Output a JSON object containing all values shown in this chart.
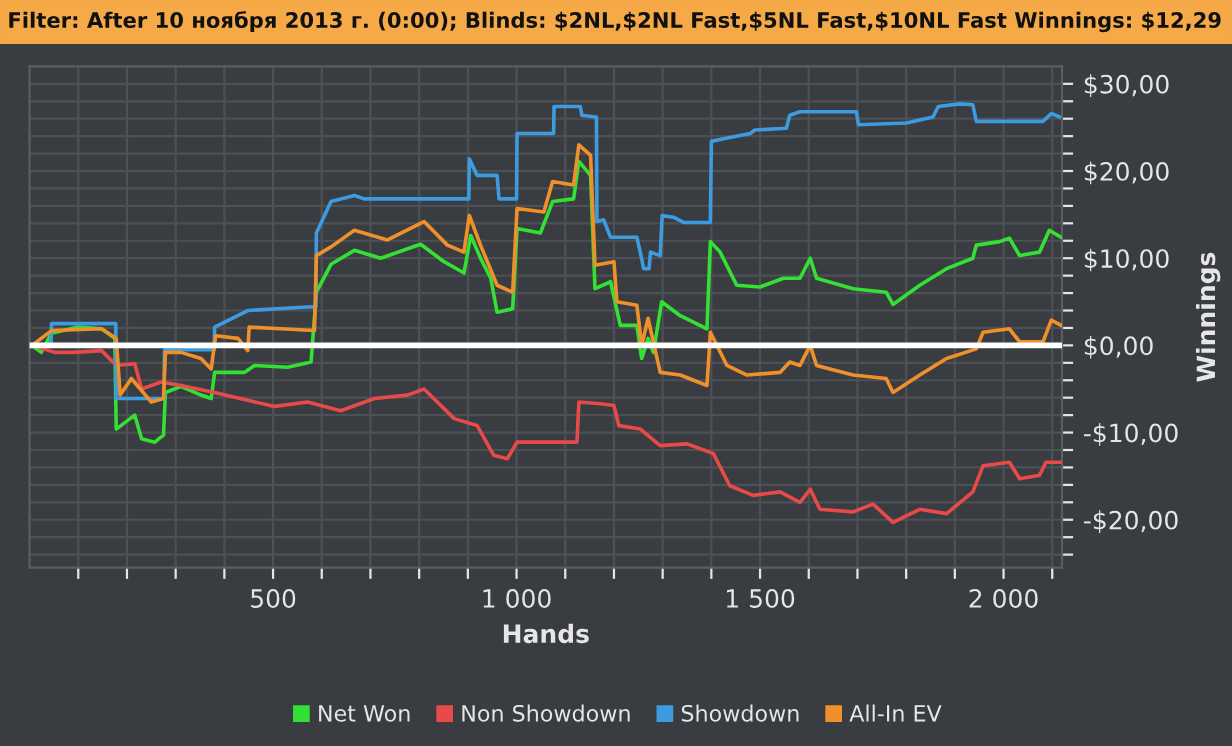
{
  "chart_data": {
    "type": "line",
    "title": "Filter: After 10 ноября 2013 г. (0:00); Blinds: $2NL,$2NL Fast,$5NL Fast,$10NL Fast Winnings: $12,29",
    "xlabel": "Hands",
    "ylabel": "Winnings",
    "xlim": [
      0,
      2120
    ],
    "ylim": [
      -25.5,
      32
    ],
    "xticks": [
      {
        "value": 100,
        "label": null
      },
      {
        "value": 200,
        "label": null
      },
      {
        "value": 300,
        "label": null
      },
      {
        "value": 400,
        "label": null
      },
      {
        "value": 500,
        "label": "500"
      },
      {
        "value": 600,
        "label": null
      },
      {
        "value": 700,
        "label": null
      },
      {
        "value": 800,
        "label": null
      },
      {
        "value": 900,
        "label": null
      },
      {
        "value": 1000,
        "label": "1 000"
      },
      {
        "value": 1100,
        "label": null
      },
      {
        "value": 1200,
        "label": null
      },
      {
        "value": 1300,
        "label": null
      },
      {
        "value": 1400,
        "label": null
      },
      {
        "value": 1500,
        "label": "1 500"
      },
      {
        "value": 1600,
        "label": null
      },
      {
        "value": 1700,
        "label": null
      },
      {
        "value": 1800,
        "label": null
      },
      {
        "value": 1900,
        "label": null
      },
      {
        "value": 2000,
        "label": "2 000"
      },
      {
        "value": 2100,
        "label": null
      }
    ],
    "yticks": [
      {
        "value": -24,
        "label": null
      },
      {
        "value": -22,
        "label": null
      },
      {
        "value": -20,
        "label": "-$20,00"
      },
      {
        "value": -18,
        "label": null
      },
      {
        "value": -16,
        "label": null
      },
      {
        "value": -14,
        "label": null
      },
      {
        "value": -12,
        "label": null
      },
      {
        "value": -10,
        "label": "-$10,00"
      },
      {
        "value": -8,
        "label": null
      },
      {
        "value": -6,
        "label": null
      },
      {
        "value": -4,
        "label": null
      },
      {
        "value": -2,
        "label": null
      },
      {
        "value": 0,
        "label": "$0,00"
      },
      {
        "value": 2,
        "label": null
      },
      {
        "value": 4,
        "label": null
      },
      {
        "value": 6,
        "label": null
      },
      {
        "value": 8,
        "label": null
      },
      {
        "value": 10,
        "label": "$10,00"
      },
      {
        "value": 12,
        "label": null
      },
      {
        "value": 14,
        "label": null
      },
      {
        "value": 16,
        "label": null
      },
      {
        "value": 18,
        "label": null
      },
      {
        "value": 20,
        "label": "$20,00"
      },
      {
        "value": 22,
        "label": null
      },
      {
        "value": 24,
        "label": null
      },
      {
        "value": 26,
        "label": null
      },
      {
        "value": 28,
        "label": null
      },
      {
        "value": 30,
        "label": "$30,00"
      }
    ],
    "grid": true,
    "legend": "bottom",
    "marker": "none",
    "line_style": "solid",
    "ref_lines": [
      {
        "axis": "y",
        "value": 0,
        "label": null,
        "color": "#ffffff"
      }
    ],
    "series": [
      {
        "name": "Net Won",
        "color": "#33e033",
        "x": [
          5,
          24,
          45,
          100,
          148,
          175,
          178,
          216,
          230,
          257,
          275,
          279,
          311,
          352,
          373,
          380,
          441,
          462,
          530,
          578,
          589,
          619,
          667,
          721,
          803,
          851,
          892,
          906,
          926,
          947,
          960,
          992,
          1001,
          1049,
          1074,
          1117,
          1128,
          1152,
          1161,
          1193,
          1213,
          1247,
          1257,
          1270,
          1281,
          1298,
          1336,
          1391,
          1398,
          1418,
          1452,
          1500,
          1548,
          1582,
          1603,
          1616,
          1691,
          1759,
          1773,
          1828,
          1883,
          1937,
          1944,
          1992,
          2012,
          2033,
          2074,
          2094,
          2118
        ],
        "values": [
          0,
          -0.8,
          1.4,
          2.1,
          1.9,
          0.8,
          -9.6,
          -8.0,
          -10.7,
          -11.1,
          -10.3,
          -5.4,
          -4.7,
          -5.7,
          -6.1,
          -3.1,
          -3.1,
          -2.3,
          -2.5,
          -1.9,
          6.1,
          9.3,
          10.9,
          10.0,
          11.6,
          9.6,
          8.3,
          12.6,
          10.0,
          7.7,
          3.8,
          4.2,
          13.4,
          12.9,
          16.5,
          16.8,
          21.1,
          19.5,
          6.5,
          7.3,
          2.3,
          2.3,
          -1.5,
          0.8,
          -0.8,
          5.0,
          3.4,
          1.9,
          11.9,
          10.7,
          6.9,
          6.7,
          7.7,
          7.7,
          10.0,
          7.7,
          6.5,
          6.1,
          4.7,
          6.9,
          8.8,
          10.0,
          11.5,
          11.9,
          12.3,
          10.3,
          10.7,
          13.2,
          12.4
        ]
      },
      {
        "name": "Non Showdown",
        "color": "#e84a4a",
        "x": [
          5,
          52,
          93,
          148,
          178,
          216,
          230,
          270,
          311,
          380,
          448,
          503,
          571,
          639,
          708,
          776,
          810,
          872,
          919,
          953,
          981,
          1001,
          1063,
          1124,
          1128,
          1172,
          1200,
          1210,
          1254,
          1295,
          1350,
          1404,
          1438,
          1486,
          1541,
          1582,
          1603,
          1623,
          1691,
          1732,
          1773,
          1828,
          1883,
          1937,
          1958,
          2012,
          2033,
          2074,
          2087,
          2118
        ],
        "values": [
          0,
          -0.8,
          -0.8,
          -0.6,
          -2.3,
          -2.1,
          -5.0,
          -4.2,
          -4.6,
          -5.4,
          -6.3,
          -7.0,
          -6.5,
          -7.5,
          -6.1,
          -5.7,
          -5.0,
          -8.4,
          -9.2,
          -12.6,
          -13.0,
          -11.1,
          -11.1,
          -11.1,
          -6.5,
          -6.7,
          -6.9,
          -9.2,
          -9.6,
          -11.5,
          -11.3,
          -12.4,
          -16.1,
          -17.2,
          -16.8,
          -18.0,
          -16.5,
          -18.8,
          -19.1,
          -18.2,
          -20.3,
          -18.8,
          -19.3,
          -16.8,
          -13.8,
          -13.4,
          -15.3,
          -14.9,
          -13.4,
          -13.4
        ]
      },
      {
        "name": "Showdown",
        "color": "#3d9be0",
        "x": [
          5,
          44,
          45,
          177,
          178,
          276,
          277,
          379,
          380,
          448,
          571,
          588,
          589,
          619,
          667,
          687,
          892,
          902,
          903,
          919,
          960,
          964,
          992,
          1000,
          1001,
          1074,
          1076,
          1077,
          1131,
          1134,
          1161,
          1164,
          1165,
          1179,
          1193,
          1247,
          1254,
          1261,
          1272,
          1275,
          1295,
          1299,
          1322,
          1343,
          1398,
          1400,
          1425,
          1480,
          1489,
          1554,
          1561,
          1582,
          1698,
          1702,
          1801,
          1855,
          1866,
          1910,
          1937,
          1944,
          2081,
          2098,
          2115
        ],
        "values": [
          0,
          0,
          2.5,
          2.5,
          -6.1,
          -6.1,
          -0.5,
          -0.5,
          2.1,
          4.0,
          4.4,
          4.4,
          12.9,
          16.5,
          17.2,
          16.8,
          16.8,
          16.8,
          21.4,
          19.5,
          19.5,
          16.8,
          16.8,
          16.8,
          24.3,
          24.3,
          24.3,
          27.4,
          27.4,
          26.4,
          26.2,
          26.2,
          14.2,
          14.4,
          12.4,
          12.4,
          10.7,
          8.8,
          8.8,
          10.7,
          10.3,
          14.9,
          14.7,
          14.1,
          14.1,
          23.4,
          23.7,
          24.3,
          24.7,
          24.9,
          26.4,
          26.8,
          26.8,
          25.3,
          25.5,
          26.2,
          27.4,
          27.7,
          27.6,
          25.7,
          25.7,
          26.6,
          26.2
        ]
      },
      {
        "name": "All-In EV",
        "color": "#f0902a",
        "x": [
          5,
          45,
          148,
          178,
          186,
          209,
          250,
          275,
          279,
          311,
          352,
          373,
          382,
          428,
          448,
          451,
          516,
          585,
          589,
          619,
          667,
          735,
          810,
          858,
          892,
          903,
          926,
          960,
          992,
          1001,
          1056,
          1074,
          1117,
          1128,
          1152,
          1161,
          1200,
          1206,
          1247,
          1257,
          1270,
          1295,
          1336,
          1391,
          1398,
          1432,
          1473,
          1541,
          1561,
          1582,
          1603,
          1616,
          1691,
          1759,
          1773,
          1828,
          1883,
          1944,
          1958,
          2012,
          2033,
          2081,
          2098,
          2118
        ],
        "values": [
          0,
          1.7,
          1.9,
          0.8,
          -5.7,
          -3.8,
          -6.5,
          -6.1,
          -0.8,
          -0.8,
          -1.5,
          -2.7,
          1.1,
          0.8,
          -0.6,
          2.1,
          1.9,
          1.7,
          10.3,
          11.3,
          13.2,
          12.1,
          14.2,
          11.5,
          10.7,
          14.9,
          11.5,
          6.9,
          6.1,
          15.7,
          15.3,
          18.8,
          18.4,
          23.0,
          21.8,
          9.2,
          9.6,
          5.0,
          4.6,
          0,
          3.1,
          -3.1,
          -3.4,
          -4.6,
          1.5,
          -2.3,
          -3.4,
          -3.1,
          -1.9,
          -2.3,
          0,
          -2.3,
          -3.4,
          -3.8,
          -5.4,
          -3.4,
          -1.5,
          -0.4,
          1.5,
          1.9,
          0.4,
          0.4,
          2.9,
          2.3
        ]
      }
    ]
  }
}
